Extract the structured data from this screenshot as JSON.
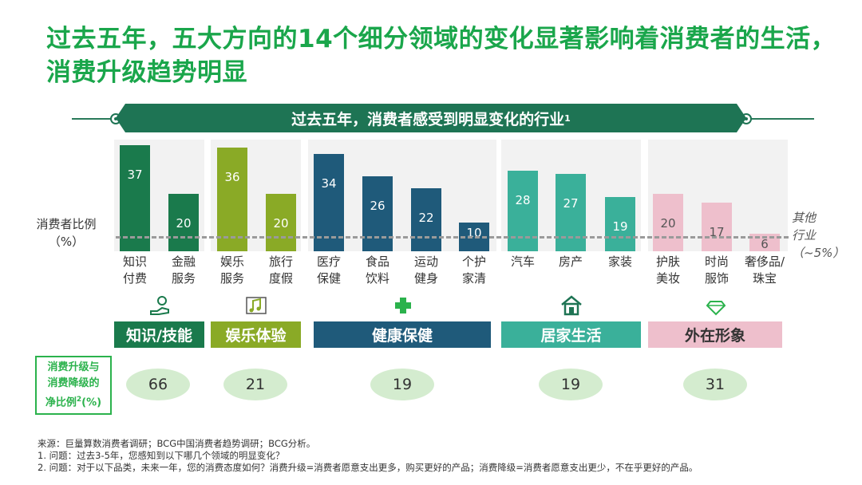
{
  "title": "过去五年，五大方向的14个细分领域的变化显著影响着消费者的生活，消费升级趋势明显",
  "banner": {
    "text": "过去五年，消费者感受到明显变化的行业",
    "sup": "1"
  },
  "y_label_line1": "消费者比例",
  "y_label_line2": "（%）",
  "other_label_line1": "其他",
  "other_label_line2": "行业",
  "other_label_line3": "（~5%）",
  "chart_data": {
    "type": "bar",
    "title": "过去五年，消费者感受到明显变化的行业1",
    "ylabel": "消费者比例（%）",
    "ylim": [
      0,
      40
    ],
    "reference_line": {
      "label": "其他行业（~5%）",
      "value": 5
    },
    "categories": [
      "知识付费",
      "金融服务",
      "娱乐服务",
      "旅行度假",
      "医疗保健",
      "食品饮料",
      "运动健身",
      "个护家清",
      "汽车",
      "房产",
      "家装",
      "护肤美妆",
      "时尚服饰",
      "奢侈品/珠宝"
    ],
    "category_lines": [
      [
        "知识",
        "付费"
      ],
      [
        "金融",
        "服务"
      ],
      [
        "娱乐",
        "服务"
      ],
      [
        "旅行",
        "度假"
      ],
      [
        "医疗",
        "保健"
      ],
      [
        "食品",
        "饮料"
      ],
      [
        "运动",
        "健身"
      ],
      [
        "个护",
        "家清"
      ],
      [
        "汽车",
        ""
      ],
      [
        "房产",
        ""
      ],
      [
        "家装",
        ""
      ],
      [
        "护肤",
        "美妆"
      ],
      [
        "时尚",
        "服饰"
      ],
      [
        "奢侈品/",
        "珠宝"
      ]
    ],
    "values": [
      37,
      20,
      36,
      20,
      34,
      26,
      22,
      10,
      28,
      27,
      19,
      20,
      17,
      6
    ],
    "groups": [
      {
        "name": "知识/技能",
        "net_ratio": 66,
        "color": "#1a7a4c",
        "members": [
          0,
          1
        ]
      },
      {
        "name": "娱乐体验",
        "net_ratio": 21,
        "color": "#8aaa26",
        "members": [
          2,
          3
        ]
      },
      {
        "name": "健康保健",
        "net_ratio": 19,
        "color": "#1f5a7a",
        "members": [
          4,
          5,
          6,
          7
        ]
      },
      {
        "name": "居家生活",
        "net_ratio": 19,
        "color": "#3ab09a",
        "members": [
          8,
          9,
          10
        ]
      },
      {
        "name": "外在形象",
        "net_ratio": 31,
        "color": "#eebfcc",
        "members": [
          11,
          12,
          13
        ]
      }
    ]
  },
  "net_label": {
    "line1": "消费升级与",
    "line2": "消费降级的",
    "line3": "净比例",
    "sup": "2",
    "line3_suffix": "(%)"
  },
  "notes": [
    "来源：巨量算数消费者调研；BCG中国消费者趋势调研；BCG分析。",
    "1. 问题：过去3-5年，您感知到以下哪几个领域的明显变化？",
    "2. 问题：对于以下品类，未来一年，您的消费态度如何？消费升级=消费者愿意支出更多，购买更好的产品；消费降级=消费者愿意支出更少，不在乎更好的产品。"
  ],
  "colors": {
    "title": "#1aa64b",
    "bars": [
      "#1a7a4c",
      "#1a7a4c",
      "#8aaa26",
      "#8aaa26",
      "#1f5a7a",
      "#1f5a7a",
      "#1f5a7a",
      "#1f5a7a",
      "#3ab09a",
      "#3ab09a",
      "#3ab09a",
      "#eebfcc",
      "#eebfcc",
      "#eebfcc"
    ]
  },
  "icons": [
    "knowledge-icon",
    "music-note-icon",
    "health-plus-icon",
    "house-icon",
    "diamond-icon"
  ]
}
